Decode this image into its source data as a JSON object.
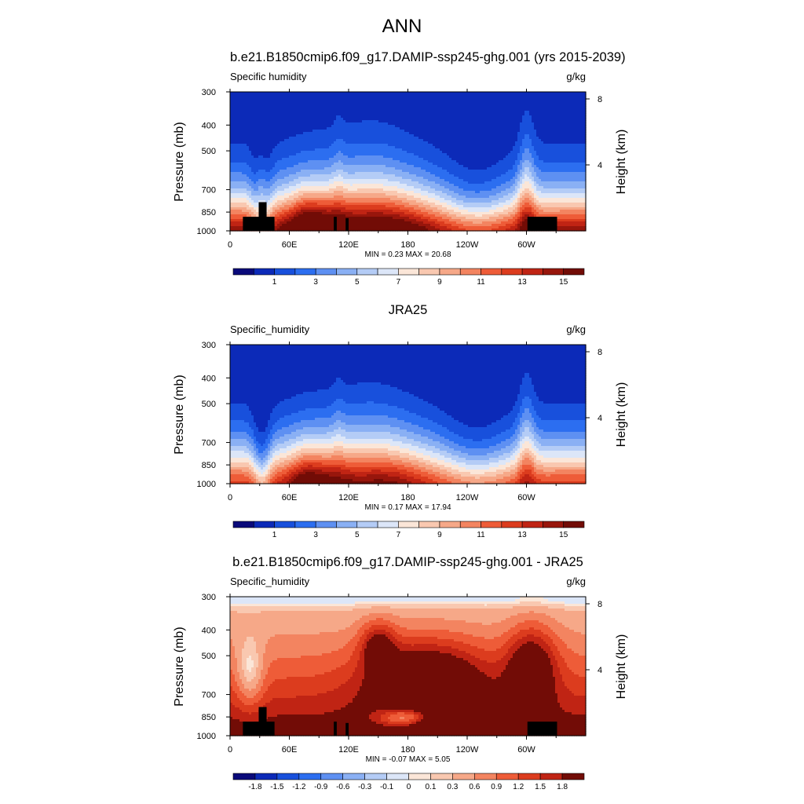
{
  "figure_title": "ANN",
  "chart_data": [
    {
      "type": "heatmap",
      "title": "b.e21.B1850cmip6.f09_g17.DAMIP-ssp245-ghg.001 (yrs 2015-2039)",
      "left_label": "Specific humidity",
      "units": "g/kg",
      "ylabel": "Pressure (mb)",
      "ylabel_right": "Height (km)",
      "x_ticks": [
        "0",
        "60E",
        "120E",
        "180",
        "120W",
        "60W"
      ],
      "y_ticks": [
        "300",
        "400",
        "500",
        "700",
        "850",
        "1000"
      ],
      "y_right_ticks": [
        "8",
        "4"
      ],
      "min_max_text": "MIN =   0.23  MAX =  20.68",
      "min": 0.23,
      "max": 20.68,
      "colorbar_ticks": [
        "1",
        "3",
        "5",
        "7",
        "9",
        "11",
        "13",
        "15"
      ],
      "colorbar_levels": [
        0,
        1,
        2,
        3,
        4,
        5,
        6,
        7,
        8,
        9,
        10,
        11,
        12,
        13,
        14,
        15,
        16
      ],
      "colors": [
        "#0a0a7a",
        "#0c2ab8",
        "#1850dc",
        "#2c6ef0",
        "#5e90f2",
        "#8ab0f4",
        "#b4ccf6",
        "#dce6f8",
        "#fbe6d8",
        "#f9c8b0",
        "#f6a888",
        "#f38460",
        "#ee5c38",
        "#dc3c1e",
        "#c02414",
        "#98160c",
        "#720c06"
      ],
      "field": "clim_model"
    },
    {
      "type": "heatmap",
      "title": "JRA25",
      "left_label": "Specific_humidity",
      "units": "g/kg",
      "ylabel": "Pressure (mb)",
      "ylabel_right": "Height (km)",
      "x_ticks": [
        "0",
        "60E",
        "120E",
        "180",
        "120W",
        "60W"
      ],
      "y_ticks": [
        "300",
        "400",
        "500",
        "700",
        "850",
        "1000"
      ],
      "y_right_ticks": [
        "8",
        "4"
      ],
      "min_max_text": "MIN =   0.17  MAX =  17.94",
      "min": 0.17,
      "max": 17.94,
      "colorbar_ticks": [
        "1",
        "3",
        "5",
        "7",
        "9",
        "11",
        "13",
        "15"
      ],
      "colorbar_levels": [
        0,
        1,
        2,
        3,
        4,
        5,
        6,
        7,
        8,
        9,
        10,
        11,
        12,
        13,
        14,
        15,
        16
      ],
      "colors": [
        "#0a0a7a",
        "#0c2ab8",
        "#1850dc",
        "#2c6ef0",
        "#5e90f2",
        "#8ab0f4",
        "#b4ccf6",
        "#dce6f8",
        "#fbe6d8",
        "#f9c8b0",
        "#f6a888",
        "#f38460",
        "#ee5c38",
        "#dc3c1e",
        "#c02414",
        "#98160c",
        "#720c06"
      ],
      "field": "clim_obs"
    },
    {
      "type": "heatmap",
      "title": "b.e21.B1850cmip6.f09_g17.DAMIP-ssp245-ghg.001 - JRA25",
      "left_label": "Specific_humidity",
      "units": "g/kg",
      "ylabel": "Pressure (mb)",
      "ylabel_right": "Height (km)",
      "x_ticks": [
        "0",
        "60E",
        "120E",
        "180",
        "120W",
        "60W"
      ],
      "y_ticks": [
        "300",
        "400",
        "500",
        "700",
        "850",
        "1000"
      ],
      "y_right_ticks": [
        "8",
        "4"
      ],
      "min_max_text": "MIN =  -0.07  MAX =   5.05",
      "min": -0.07,
      "max": 5.05,
      "colorbar_ticks": [
        "-1.8",
        "-1.5",
        "-1.2",
        "-0.9",
        "-0.6",
        "-0.3",
        "-0.1",
        "0",
        "0.1",
        "0.3",
        "0.6",
        "0.9",
        "1.2",
        "1.5",
        "1.8"
      ],
      "colorbar_levels": [
        -1.8,
        -1.5,
        -1.2,
        -0.9,
        -0.6,
        -0.3,
        -0.1,
        0,
        0.1,
        0.3,
        0.6,
        0.9,
        1.2,
        1.5,
        1.8
      ],
      "colors": [
        "#0a0a7a",
        "#0c2ab8",
        "#1850dc",
        "#2c6ef0",
        "#5e90f2",
        "#8ab0f4",
        "#b4ccf6",
        "#dce6f8",
        "#fbe6d8",
        "#f9c8b0",
        "#f6a888",
        "#f38460",
        "#ee5c38",
        "#dc3c1e",
        "#c02414",
        "#720c06"
      ],
      "field": "difference"
    }
  ]
}
